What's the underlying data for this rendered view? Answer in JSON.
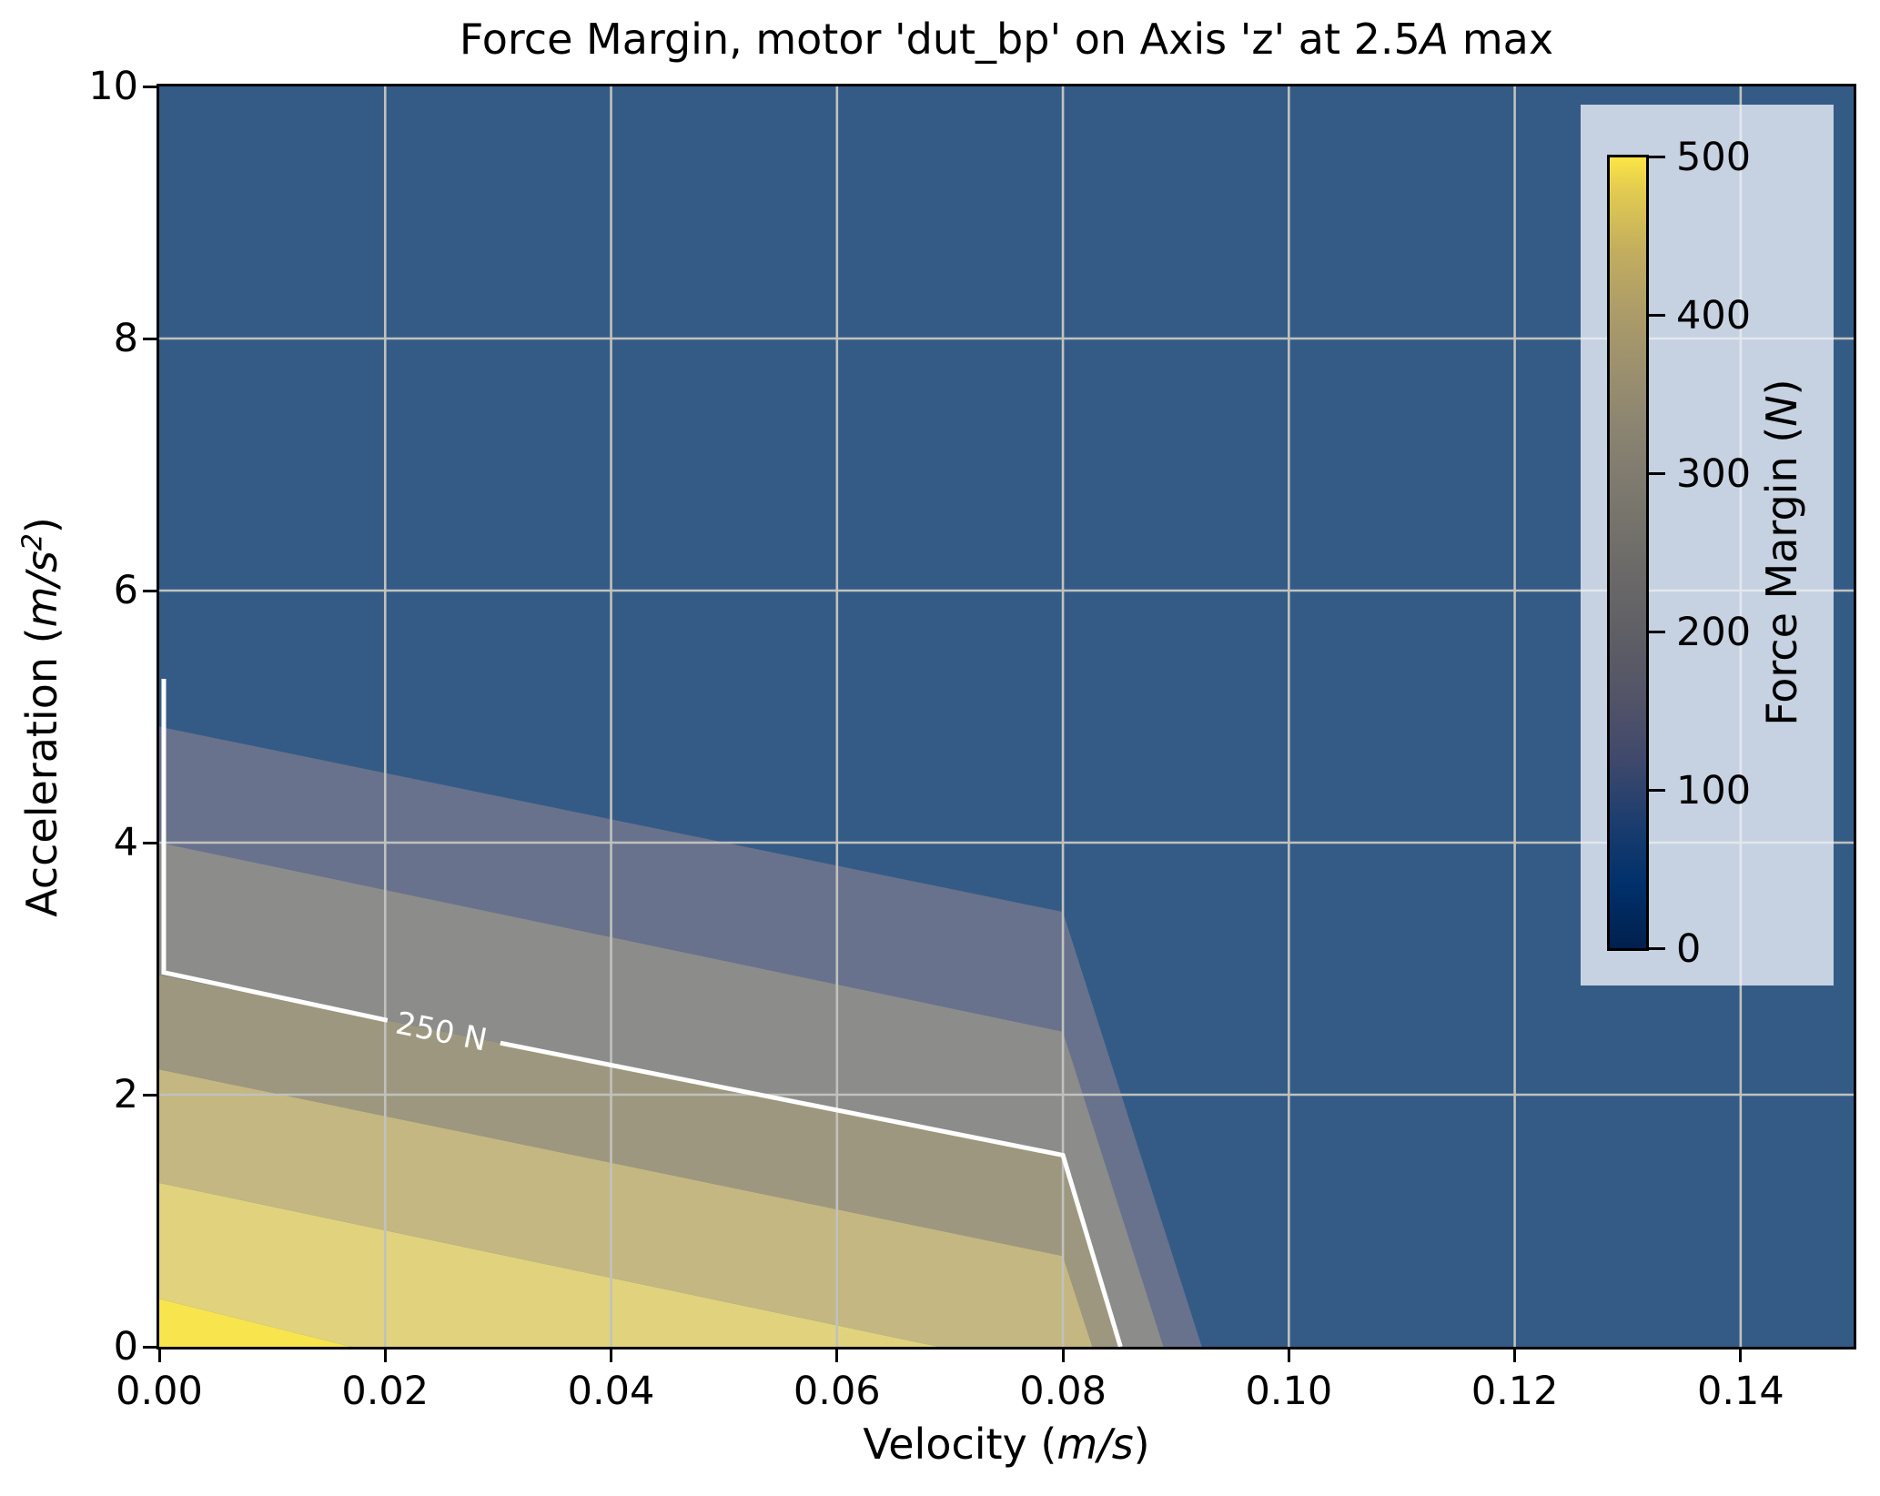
{
  "chart_data": {
    "type": "heatmap",
    "subtype": "filled-contour-plot",
    "title_parts": {
      "pre": "Force Margin, motor 'dut_bp' on Axis 'z' at 2.5",
      "italic": "A",
      "post": " max"
    },
    "xlabel_parts": {
      "pre": "Velocity (",
      "italic": "m/s",
      "post": ")"
    },
    "ylabel_parts": {
      "pre": "Acceleration (",
      "italic": "m/s",
      "sup": "2",
      "post": ")"
    },
    "xlim": [
      0.0,
      0.15
    ],
    "ylim": [
      0,
      10
    ],
    "x_ticks": [
      {
        "label": "0.00",
        "value": 0.0
      },
      {
        "label": "0.02",
        "value": 0.02
      },
      {
        "label": "0.04",
        "value": 0.04
      },
      {
        "label": "0.06",
        "value": 0.06
      },
      {
        "label": "0.08",
        "value": 0.08
      },
      {
        "label": "0.10",
        "value": 0.1
      },
      {
        "label": "0.12",
        "value": 0.12
      },
      {
        "label": "0.14",
        "value": 0.14
      }
    ],
    "y_ticks": [
      {
        "label": "0",
        "value": 0
      },
      {
        "label": "2",
        "value": 2
      },
      {
        "label": "4",
        "value": 4
      },
      {
        "label": "6",
        "value": 6
      },
      {
        "label": "8",
        "value": 8
      },
      {
        "label": "10",
        "value": 10
      }
    ],
    "grid": true,
    "colors": {
      "background_infeasible_region": "#345b85",
      "grid": "#c0c2bd",
      "spine": "#000000",
      "contour_line": "#ffffff"
    },
    "bands": [
      {
        "level_range_n": "100-150",
        "color": "#68728d",
        "points_va": [
          [
            0,
            4.92
          ],
          [
            0.08,
            3.45
          ],
          [
            0.0923,
            0
          ],
          [
            0.0889,
            0
          ],
          [
            0.08,
            2.5
          ],
          [
            0,
            4.0
          ]
        ]
      },
      {
        "level_range_n": "150-200",
        "color": "#8c8c8b",
        "points_va": [
          [
            0,
            4.0
          ],
          [
            0.08,
            2.5
          ],
          [
            0.0889,
            0
          ],
          [
            0.0851,
            0
          ],
          [
            0.08,
            1.52
          ],
          [
            0,
            2.95
          ]
        ]
      },
      {
        "level_range_n": "250-300",
        "color": "#9e977f",
        "points_va": [
          [
            0,
            2.95
          ],
          [
            0.08,
            1.52
          ],
          [
            0.0851,
            0
          ],
          [
            0.0826,
            0
          ],
          [
            0.08,
            0.72
          ],
          [
            0,
            2.2
          ]
        ]
      },
      {
        "level_range_n": "300-350",
        "color": "#c4b781",
        "points_va": [
          [
            0,
            2.2
          ],
          [
            0.08,
            0.72
          ],
          [
            0.0826,
            0
          ],
          [
            0.069,
            0
          ],
          [
            0,
            1.3
          ]
        ]
      },
      {
        "level_range_n": "350-400",
        "color": "#e1d37d",
        "points_va": [
          [
            0,
            1.3
          ],
          [
            0.069,
            0
          ],
          [
            0.017,
            0
          ],
          [
            0,
            0.38
          ]
        ]
      },
      {
        "level_range_n": "400-500",
        "color": "#f8e54e",
        "points_va": [
          [
            0,
            0.38
          ],
          [
            0.017,
            0
          ],
          [
            0,
            0
          ]
        ]
      }
    ],
    "contour_line": {
      "label": "250 N",
      "level_n": 250,
      "segments_va": [
        [
          [
            0.0004,
            5.3
          ],
          [
            0.0004,
            2.97
          ],
          [
            0.0202,
            2.59
          ]
        ],
        [
          [
            0.0302,
            2.41
          ],
          [
            0.08,
            1.52
          ],
          [
            0.0851,
            0.0
          ]
        ]
      ],
      "label_pos_va": [
        0.025,
        2.5
      ],
      "label_angle_deg": 11.3
    },
    "colorbar": {
      "label_parts": {
        "pre": "Force Margin (",
        "italic": "N",
        "post": ")"
      },
      "vmin": 0,
      "vmax": 500,
      "colormap": "cividis",
      "ticks": [
        {
          "label": "500",
          "value": 500
        },
        {
          "label": "400",
          "value": 400
        },
        {
          "label": "300",
          "value": 300
        },
        {
          "label": "200",
          "value": 200
        },
        {
          "label": "100",
          "value": 100
        },
        {
          "label": "0",
          "value": 0
        }
      ],
      "gradient_stops": [
        [
          "0",
          "#00204d"
        ],
        [
          "8",
          "#00306b"
        ],
        [
          "16",
          "#1c3d6e"
        ],
        [
          "24",
          "#40496c"
        ],
        [
          "32",
          "#535467"
        ],
        [
          "40",
          "#5f5f66"
        ],
        [
          "48",
          "#6c6a68"
        ],
        [
          "56",
          "#79766d"
        ],
        [
          "64",
          "#878170"
        ],
        [
          "72",
          "#998e6f"
        ],
        [
          "80",
          "#ab9b69"
        ],
        [
          "88",
          "#c2ad5f"
        ],
        [
          "96",
          "#e3cc4f"
        ],
        [
          "100",
          "#fce544"
        ]
      ]
    }
  }
}
